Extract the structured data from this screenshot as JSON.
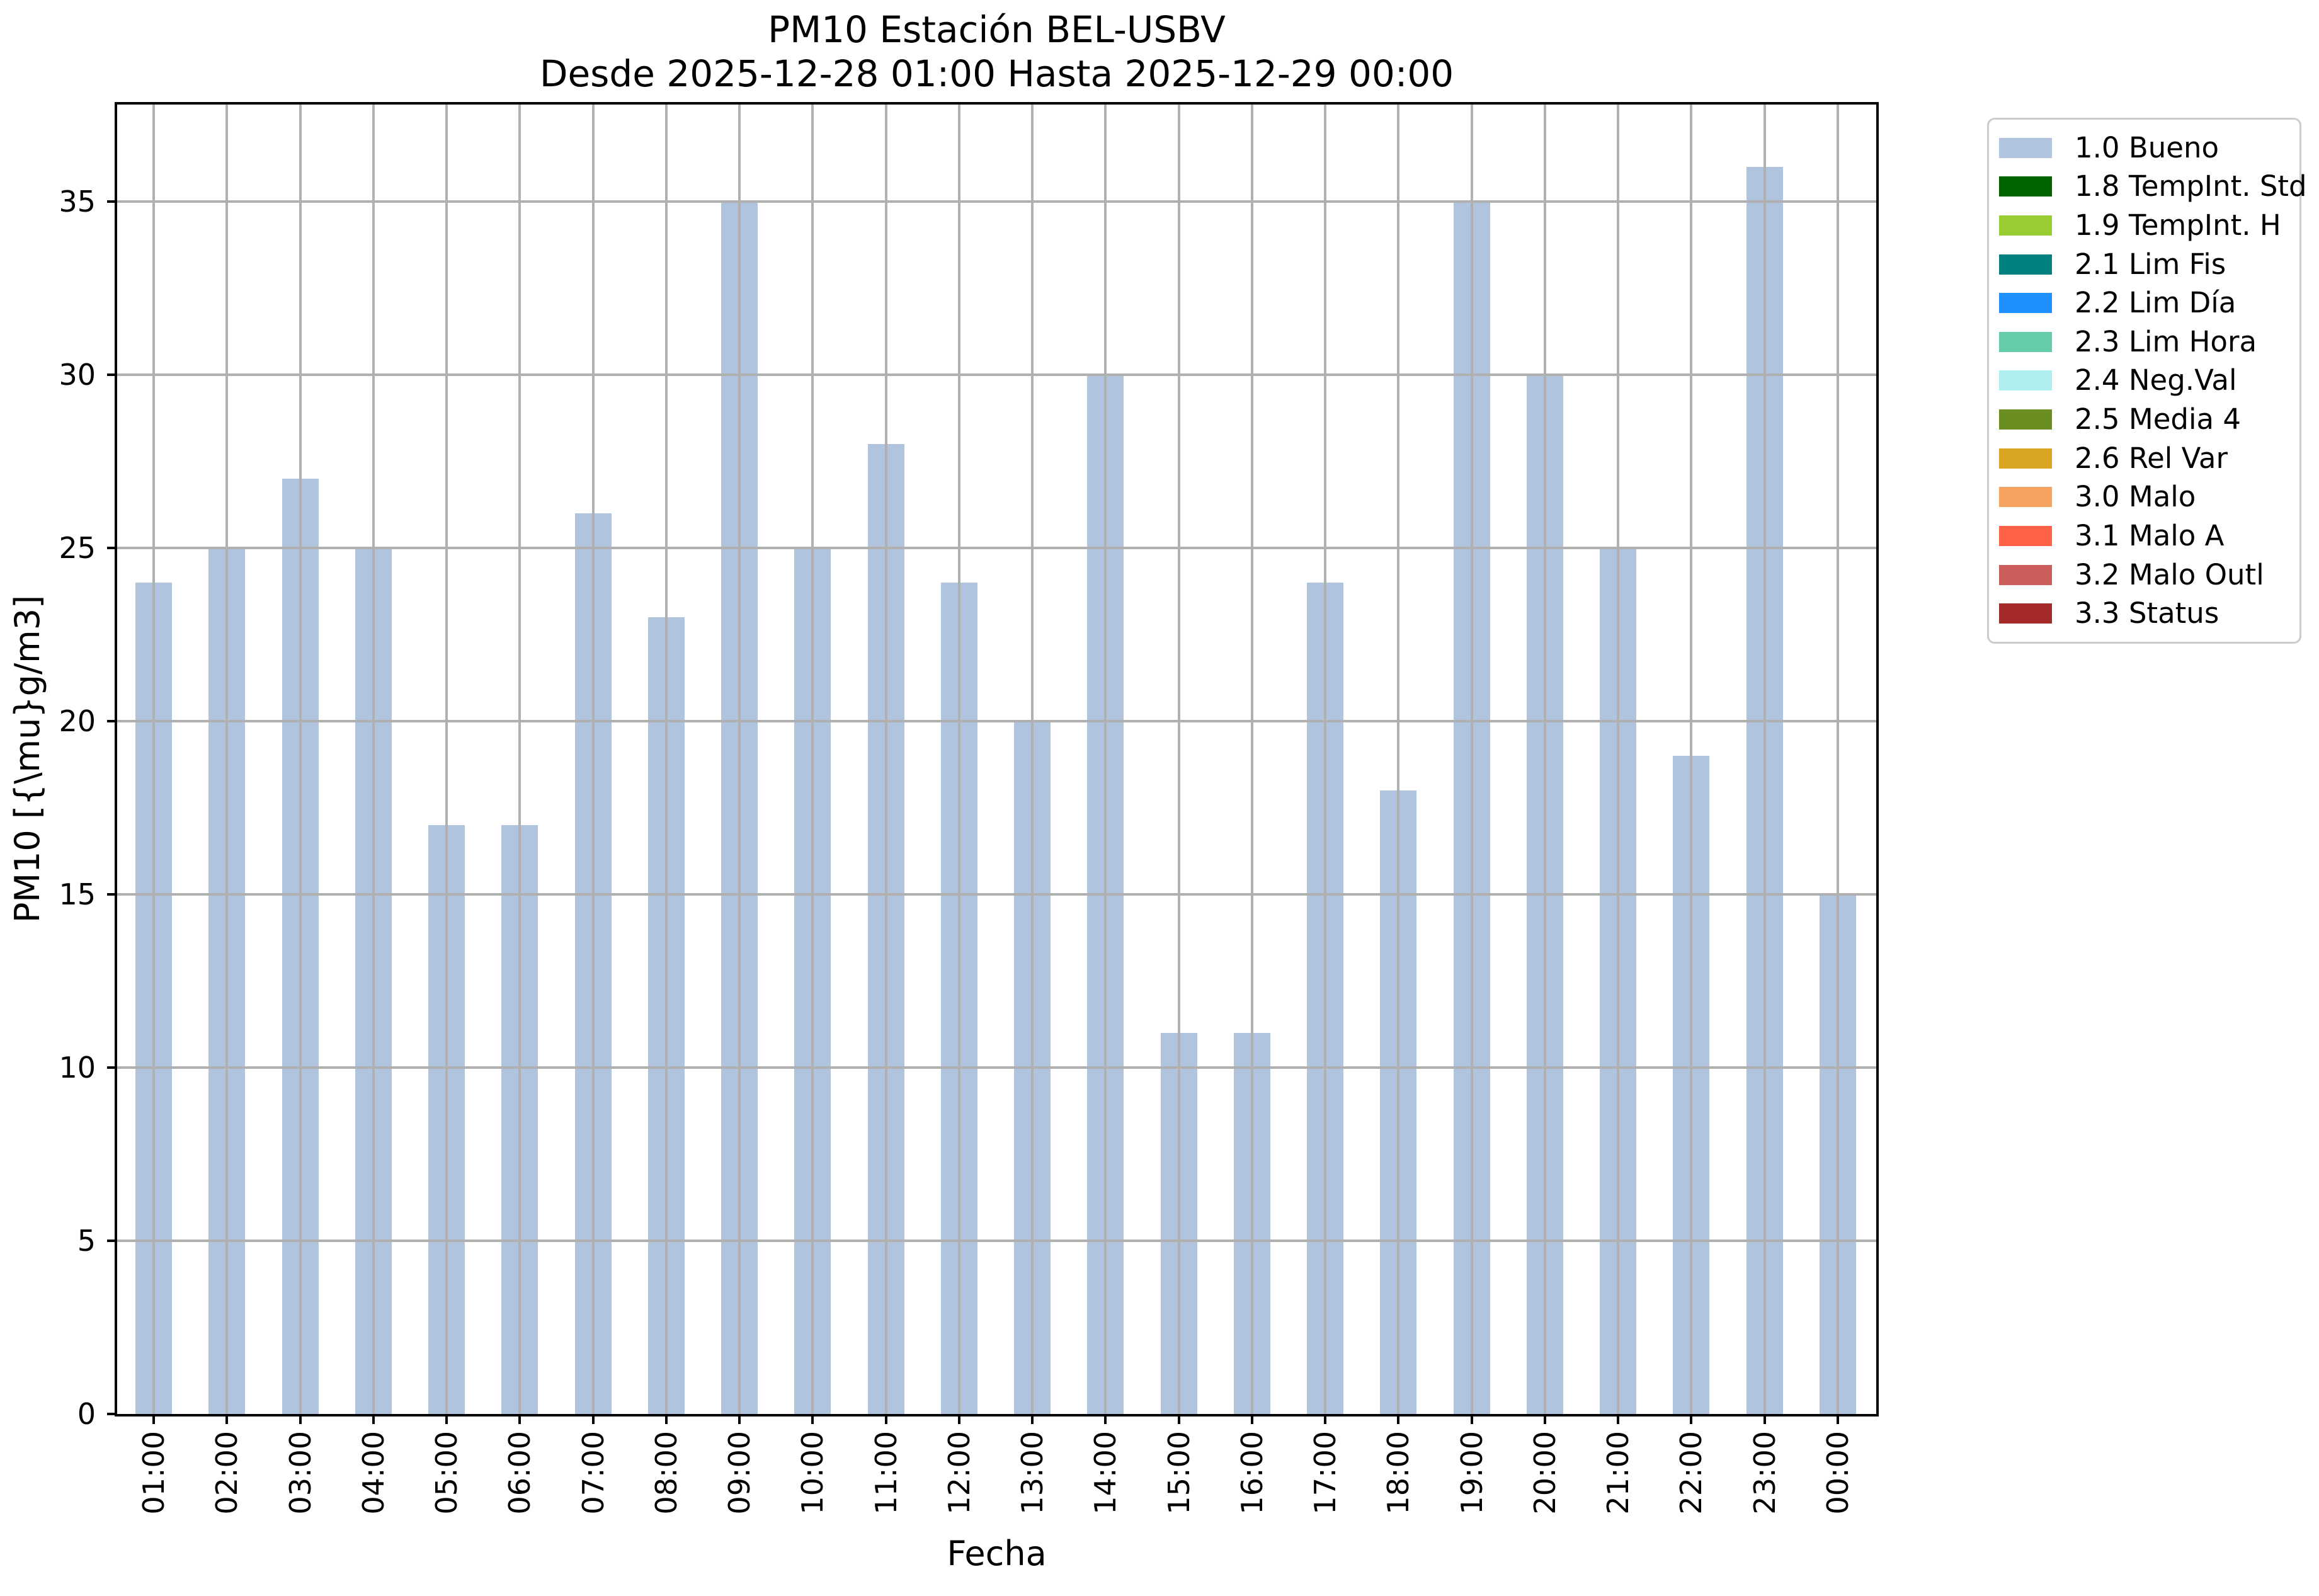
{
  "title": {
    "line1": "PM10 Estación BEL-USBV",
    "line2": "Desde 2025-12-28 01:00 Hasta 2025-12-29 00:00"
  },
  "chart_data": {
    "type": "bar",
    "title": "PM10 Estación BEL-USBV",
    "subtitle": "Desde 2025-12-28 01:00 Hasta 2025-12-29 00:00",
    "xlabel": "Fecha",
    "ylabel": "PM10 [{\\mu}g/m3]",
    "categories": [
      "01:00",
      "02:00",
      "03:00",
      "04:00",
      "05:00",
      "06:00",
      "07:00",
      "08:00",
      "09:00",
      "10:00",
      "11:00",
      "12:00",
      "13:00",
      "14:00",
      "15:00",
      "16:00",
      "17:00",
      "18:00",
      "19:00",
      "20:00",
      "21:00",
      "22:00",
      "23:00",
      "00:00"
    ],
    "series": [
      {
        "name": "1.0 Bueno",
        "values": [
          24,
          25,
          27,
          25,
          17,
          17,
          26,
          23,
          35,
          25,
          28,
          24,
          20,
          30,
          11,
          11,
          24,
          18,
          35,
          30,
          25,
          19,
          36,
          15
        ]
      }
    ],
    "bar_color": "#b0c4de",
    "ylim": [
      0,
      37.8
    ],
    "yticks": [
      0,
      5,
      10,
      15,
      20,
      25,
      30,
      35
    ],
    "grid": true,
    "gridline_color": "#b0b0b0",
    "legend_position": "outside upper right",
    "x_tick_rotation": 90
  },
  "legend": {
    "items": [
      {
        "label": "1.0 Bueno",
        "color": "#b0c4de"
      },
      {
        "label": "1.8 TempInt. Std",
        "color": "#006400"
      },
      {
        "label": "1.9 TempInt. H",
        "color": "#9acd32"
      },
      {
        "label": "2.1 Lim Fis",
        "color": "#008080"
      },
      {
        "label": "2.2 Lim Día",
        "color": "#1e90ff"
      },
      {
        "label": "2.3 Lim Hora",
        "color": "#66cdaa"
      },
      {
        "label": "2.4 Neg.Val",
        "color": "#afeeee"
      },
      {
        "label": "2.5 Media 4",
        "color": "#6b8e23"
      },
      {
        "label": "2.6 Rel Var",
        "color": "#daa520"
      },
      {
        "label": "3.0 Malo",
        "color": "#f4a460"
      },
      {
        "label": "3.1 Malo A",
        "color": "#ff6347"
      },
      {
        "label": "3.2 Malo Outl",
        "color": "#cd5c5c"
      },
      {
        "label": "3.3 Status",
        "color": "#a52a2a"
      }
    ]
  }
}
